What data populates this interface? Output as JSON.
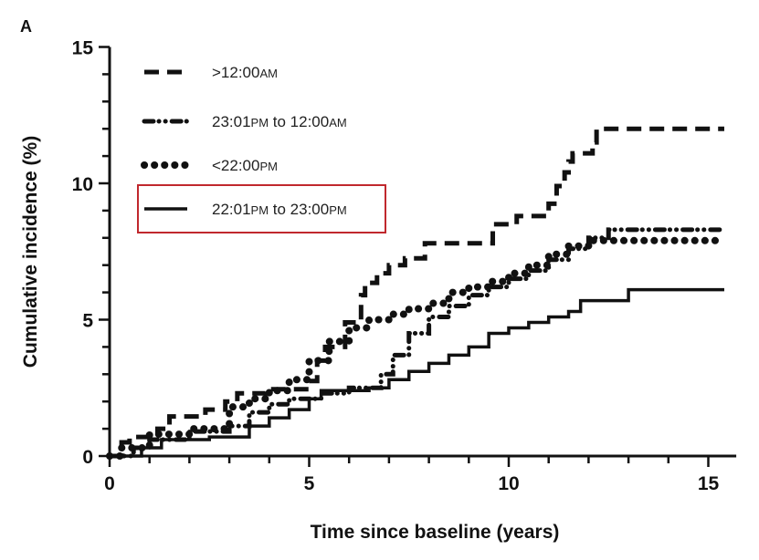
{
  "chart_data": {
    "type": "line",
    "panel_label": "A",
    "xlabel": "Time since baseline (years)",
    "ylabel": "Cumulative incidence (%)",
    "xlim": [
      0,
      15.7
    ],
    "ylim": [
      0,
      15
    ],
    "x_ticks": [
      0,
      5,
      10,
      15
    ],
    "y_ticks": [
      0,
      5,
      10,
      15
    ],
    "minor_tick_step": 1,
    "grid": false,
    "legend_position": "top-left",
    "line_shape": "step",
    "highlight_color": "#c0282d",
    "highlighted_series": "22:01PM to 23:00PM",
    "series": [
      {
        "name": ">12:00AM",
        "style": "dashed",
        "color": "#111111",
        "x": [
          0,
          0.3,
          0.5,
          1.2,
          1.5,
          2.4,
          2.9,
          3.2,
          3.9,
          5.0,
          5.2,
          5.4,
          5.9,
          6.3,
          6.4,
          6.7,
          7.0,
          7.4,
          7.9,
          9.6,
          10.2,
          11.0,
          11.2,
          11.4,
          11.5,
          11.6,
          12.1,
          12.2,
          15.4
        ],
        "y": [
          0,
          0.5,
          0.7,
          1.0,
          1.45,
          1.7,
          2.0,
          2.3,
          2.45,
          2.75,
          3.5,
          4.0,
          4.9,
          5.9,
          6.35,
          6.7,
          7.0,
          7.25,
          7.8,
          8.5,
          8.8,
          9.25,
          9.9,
          10.4,
          10.8,
          11.1,
          11.5,
          12.0,
          12.0
        ]
      },
      {
        "name": "23:01PM to 12:00AM",
        "style": "dash-dot-dot",
        "color": "#111111",
        "x": [
          0,
          0.6,
          1.0,
          2.0,
          3.0,
          3.5,
          4.0,
          4.5,
          5.3,
          6.0,
          6.5,
          6.8,
          7.1,
          7.5,
          8.0,
          8.5,
          9.0,
          9.5,
          10.0,
          10.5,
          11.0,
          11.5,
          12.0,
          12.5,
          15.4
        ],
        "y": [
          0,
          0.3,
          0.6,
          0.9,
          1.1,
          1.6,
          1.9,
          2.1,
          2.3,
          2.5,
          2.5,
          3.0,
          3.7,
          4.5,
          5.1,
          5.5,
          5.9,
          6.2,
          6.5,
          6.8,
          7.2,
          7.6,
          8.0,
          8.3,
          8.3
        ]
      },
      {
        "name": "<22:00PM",
        "style": "dotted",
        "color": "#111111",
        "x": [
          0,
          0.3,
          1.0,
          2.0,
          3.0,
          3.5,
          4.0,
          4.5,
          5.0,
          5.5,
          6.0,
          6.5,
          7.0,
          7.5,
          8.0,
          8.5,
          9.0,
          9.5,
          10.0,
          10.5,
          11.0,
          11.5,
          12.0,
          15.4
        ],
        "y": [
          0,
          0.3,
          0.8,
          1.0,
          1.8,
          2.1,
          2.4,
          2.8,
          3.5,
          4.2,
          4.7,
          5.0,
          5.2,
          5.4,
          5.6,
          6.0,
          6.2,
          6.4,
          6.7,
          7.0,
          7.4,
          7.7,
          7.9,
          7.9
        ]
      },
      {
        "name": "22:01PM to 23:00PM",
        "style": "solid",
        "color": "#111111",
        "x": [
          0,
          0.8,
          1.3,
          2.5,
          3.5,
          4.0,
          4.5,
          5.0,
          5.3,
          6.5,
          7.0,
          7.5,
          8.0,
          8.5,
          9.0,
          9.5,
          10.0,
          10.5,
          11.0,
          11.5,
          11.8,
          13.0,
          15.4
        ],
        "y": [
          0,
          0.3,
          0.6,
          0.7,
          1.1,
          1.4,
          1.7,
          2.1,
          2.4,
          2.5,
          2.8,
          3.1,
          3.4,
          3.7,
          4.0,
          4.5,
          4.7,
          4.9,
          5.1,
          5.3,
          5.7,
          6.1,
          6.1
        ]
      }
    ]
  }
}
